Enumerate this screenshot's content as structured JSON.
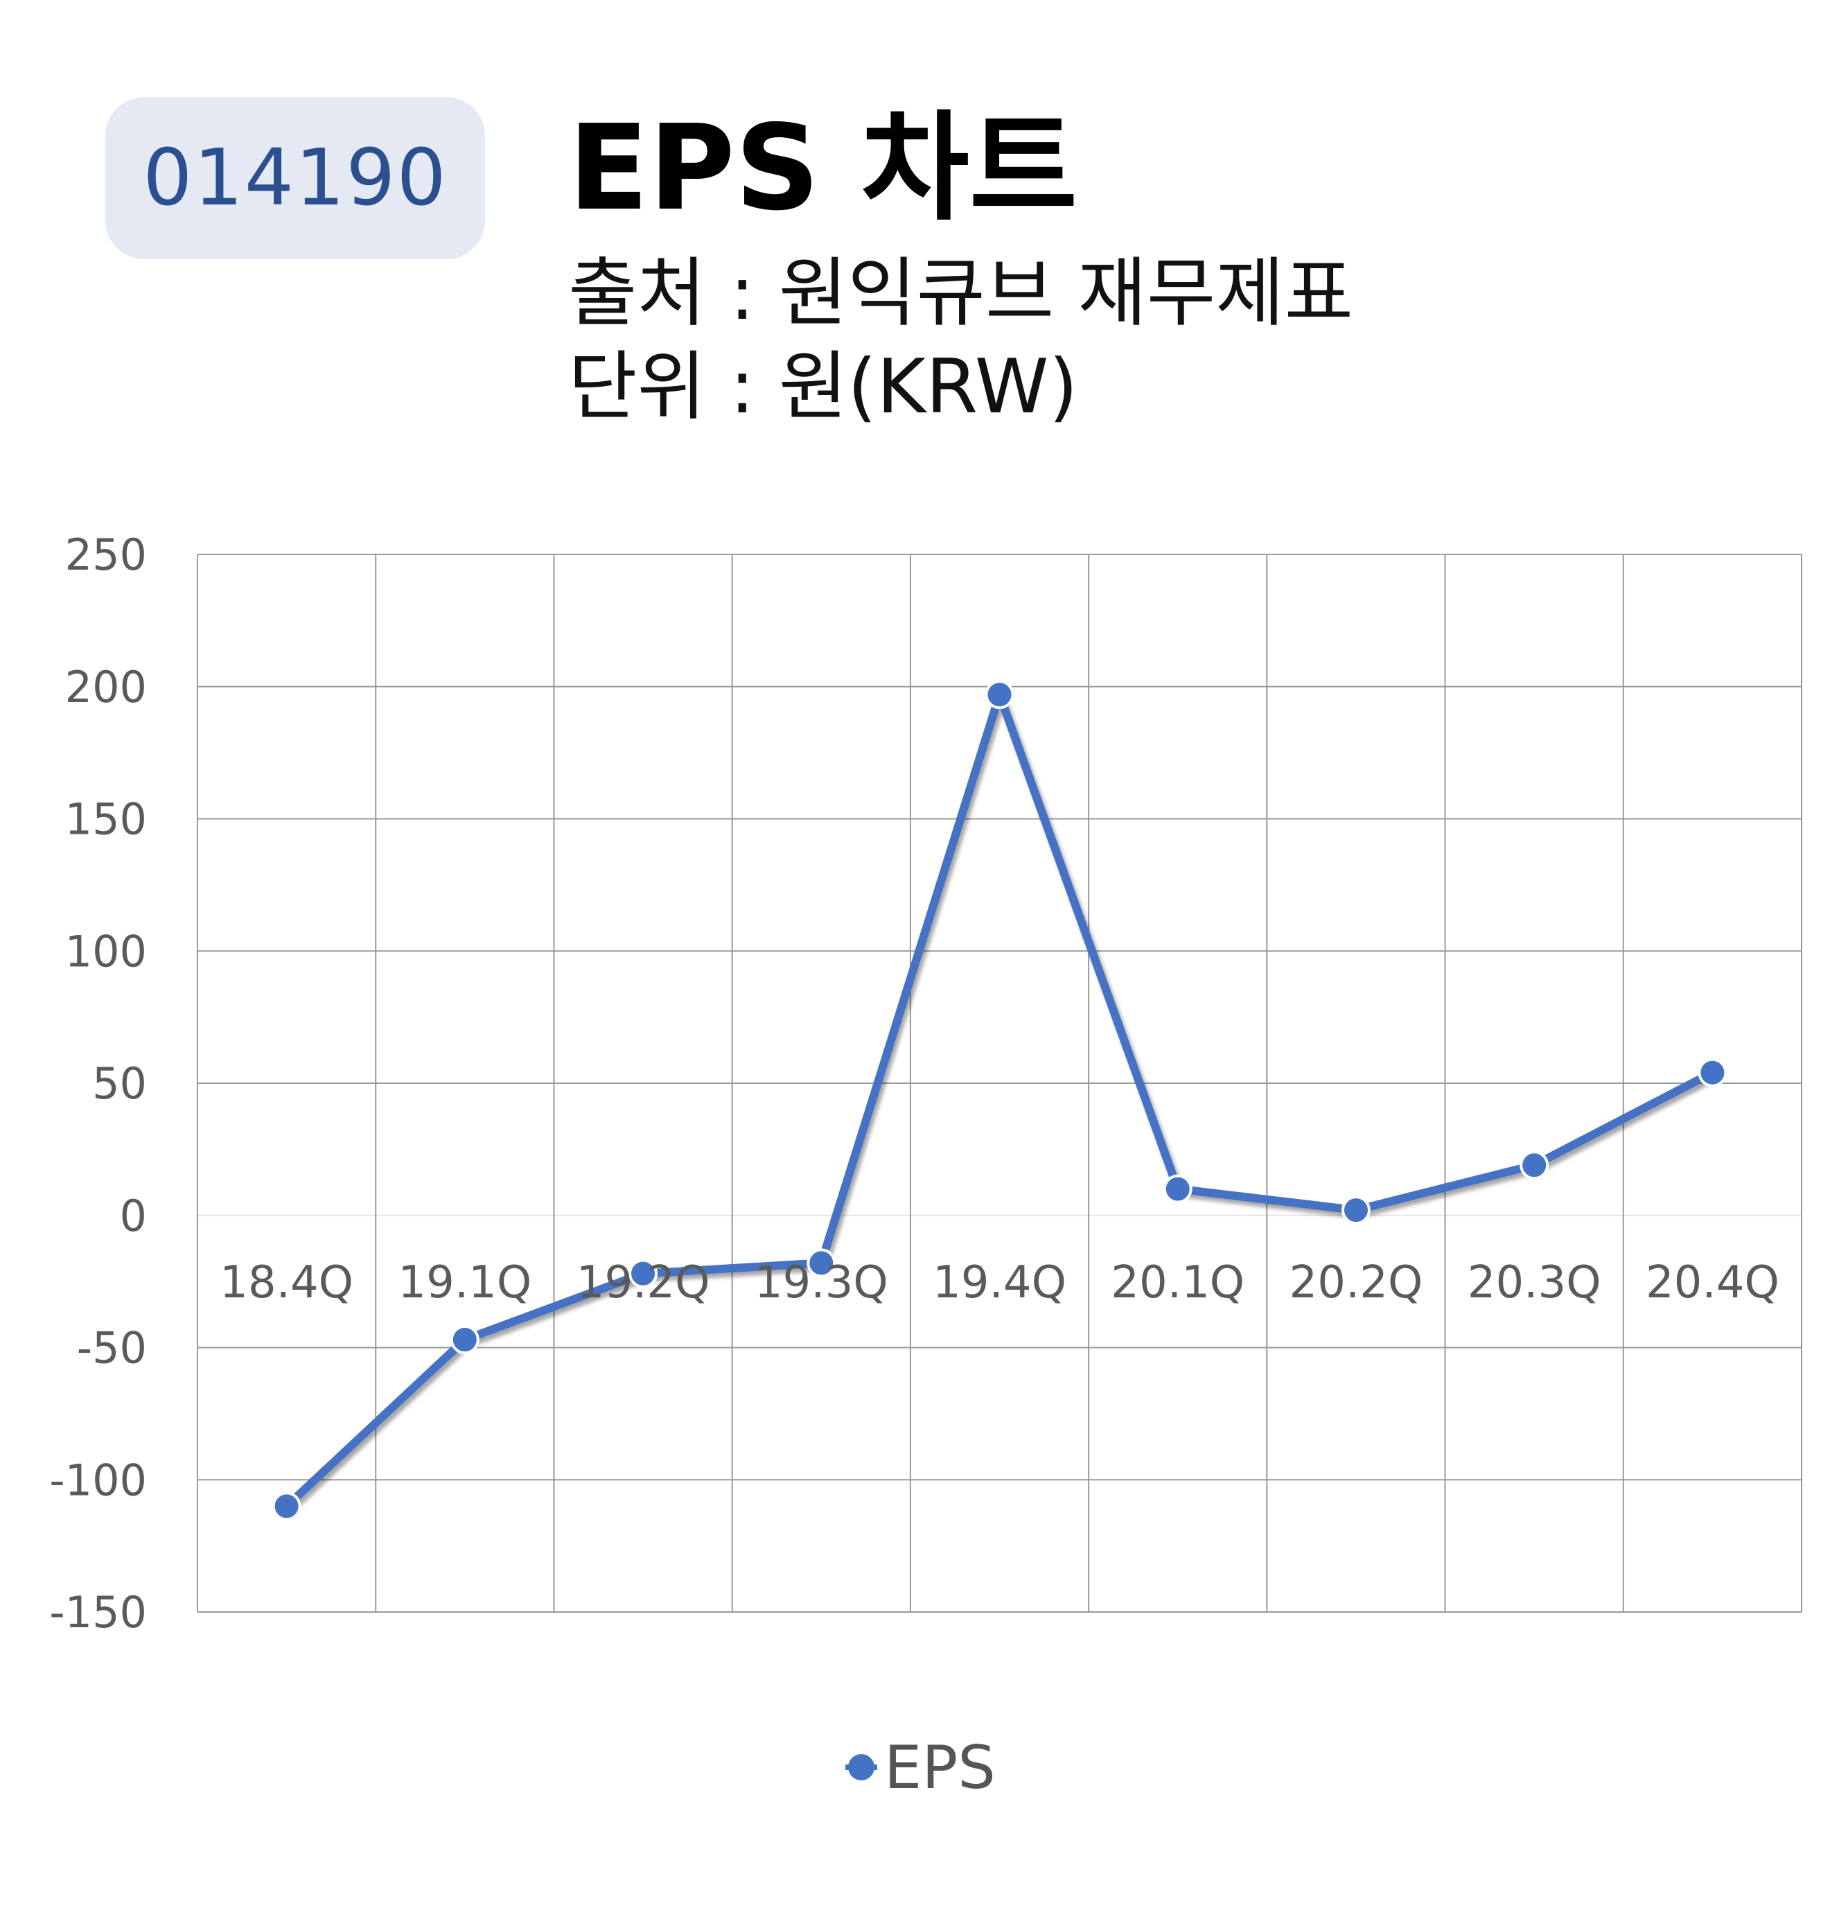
{
  "header": {
    "code": "014190",
    "title": "EPS 차트",
    "source": "출처 : 원익큐브 재무제표",
    "unit": "단위 : 원(KRW)"
  },
  "colors": {
    "series": "#4472c4",
    "badge_bg": "#e4e9f4",
    "badge_text": "#2c4f8f",
    "grid": "#999999"
  },
  "chart_data": {
    "type": "line",
    "categories": [
      "18.4Q",
      "19.1Q",
      "19.2Q",
      "19.3Q",
      "19.4Q",
      "20.1Q",
      "20.2Q",
      "20.3Q",
      "20.4Q"
    ],
    "series": [
      {
        "name": "EPS",
        "values": [
          -110,
          -47,
          -22,
          -18,
          197,
          10,
          2,
          19,
          54
        ]
      }
    ],
    "ylim": [
      -150,
      250
    ],
    "yticks": [
      250,
      200,
      150,
      100,
      50,
      0,
      -50,
      -100,
      -150
    ],
    "grid": true,
    "legend": "bottom"
  }
}
